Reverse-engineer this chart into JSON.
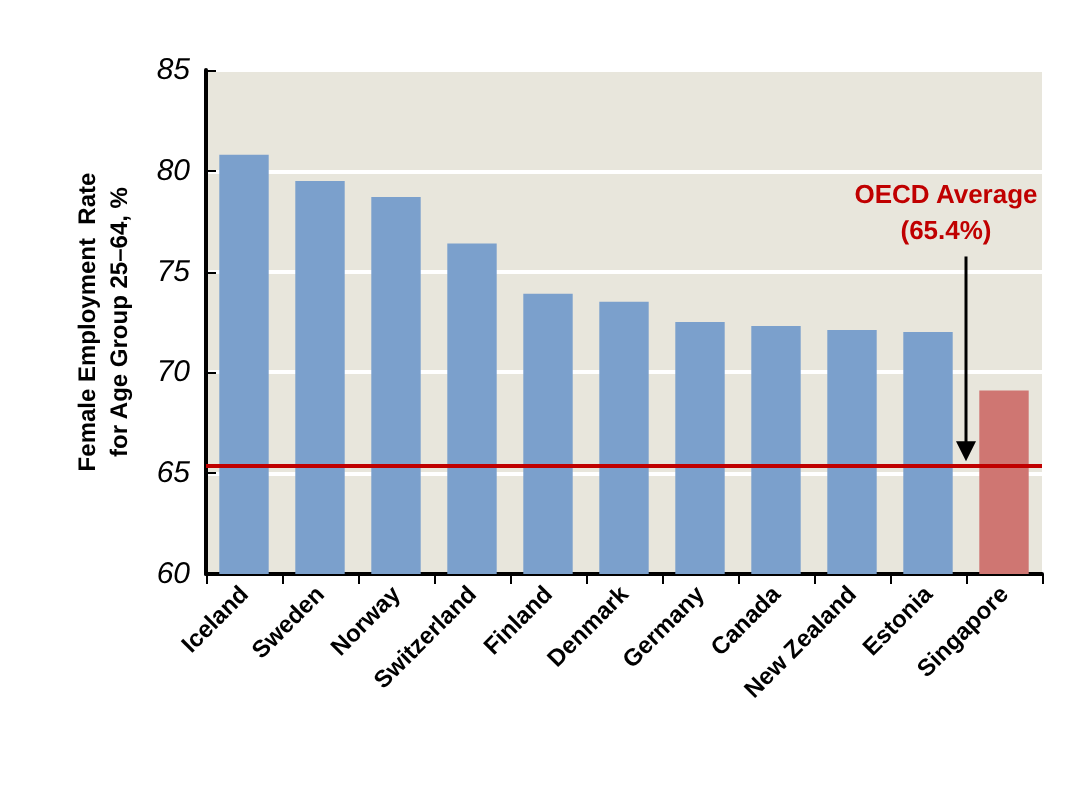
{
  "chart_data": {
    "type": "bar",
    "ylabel": "Female Employment  Rate\nfor Age Group 25–64, %",
    "categories": [
      "Iceland",
      "Sweden",
      "Norway",
      "Switzerland",
      "Finland",
      "Denmark",
      "Germany",
      "Canada",
      "New Zealand",
      "Estonia",
      "Singapore"
    ],
    "values": [
      80.8,
      79.5,
      78.7,
      76.4,
      73.9,
      73.5,
      72.5,
      72.3,
      72.1,
      72.0,
      69.1
    ],
    "colors": [
      "#7ba0cc",
      "#7ba0cc",
      "#7ba0cc",
      "#7ba0cc",
      "#7ba0cc",
      "#7ba0cc",
      "#7ba0cc",
      "#7ba0cc",
      "#7ba0cc",
      "#7ba0cc",
      "#cf7672"
    ],
    "ylim": [
      60,
      85
    ],
    "yticks": [
      60,
      65,
      70,
      75,
      80,
      85
    ],
    "grid": "y",
    "ref_lines": [
      {
        "axis": "y",
        "value": 65.4,
        "label": "OECD Average\n(65.4%)",
        "color": "#c00000",
        "line_style": "solid"
      }
    ]
  }
}
